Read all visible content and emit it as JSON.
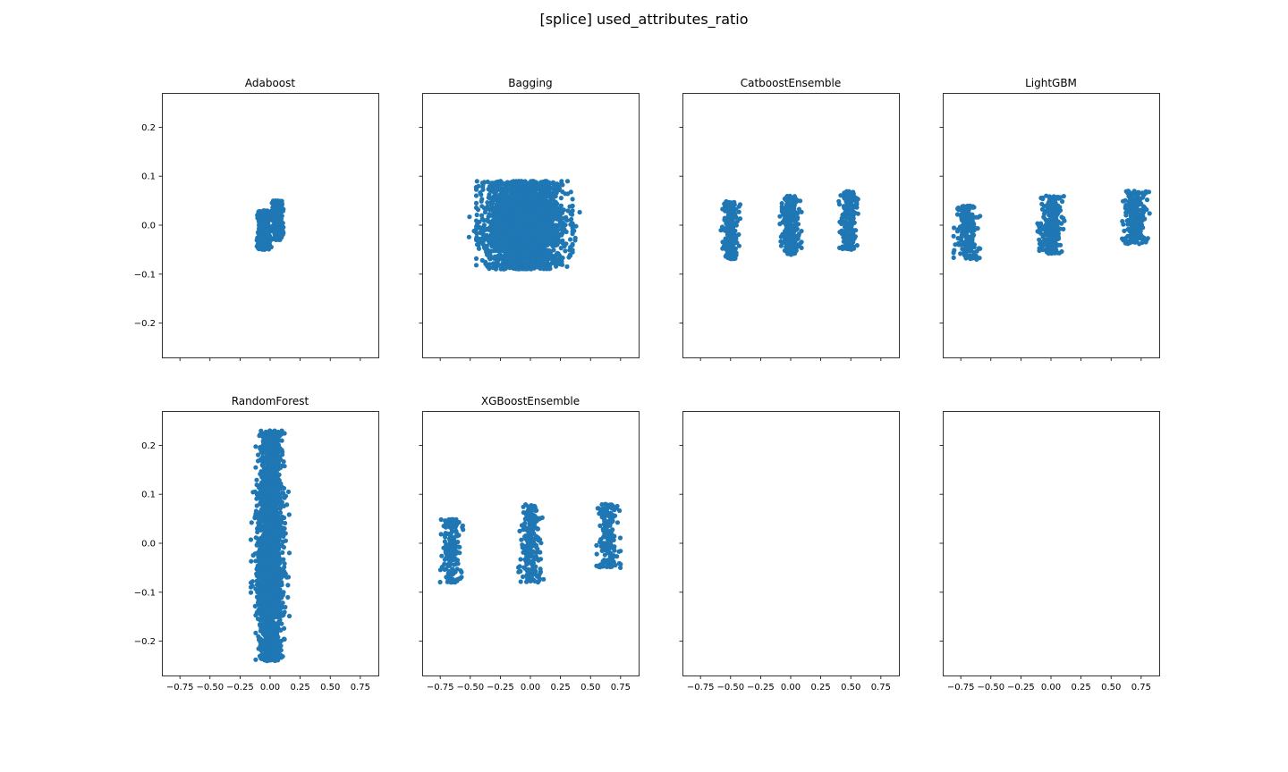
{
  "figure": {
    "title": "[splice] used_attributes_ratio",
    "point_color": "#1f77b4"
  },
  "chart_data": [
    {
      "type": "scatter",
      "title": "Adaboost",
      "xlim": [
        -0.9,
        0.9
      ],
      "ylim": [
        -0.27,
        0.27
      ],
      "x_ticks": [
        "−0.75",
        "−0.50",
        "−0.25",
        "0.00",
        "0.25",
        "0.50",
        "0.75"
      ],
      "x_tick_values": [
        -0.75,
        -0.5,
        -0.25,
        0,
        0.25,
        0.5,
        0.75
      ],
      "y_ticks": [
        "−0.2",
        "−0.1",
        "0.0",
        "0.1",
        "0.2"
      ],
      "y_tick_values": [
        -0.2,
        -0.1,
        0,
        0.1,
        0.2
      ],
      "show_x_tick_labels": false,
      "show_y_tick_labels": true,
      "clusters": [
        {
          "x_center": -0.05,
          "x_spread": 0.06,
          "y_min": -0.05,
          "y_max": 0.03,
          "count": 450
        },
        {
          "x_center": 0.06,
          "x_spread": 0.05,
          "y_min": -0.03,
          "y_max": 0.05,
          "count": 450
        }
      ]
    },
    {
      "type": "scatter",
      "title": "Bagging",
      "xlim": [
        -0.9,
        0.9
      ],
      "ylim": [
        -0.27,
        0.27
      ],
      "x_ticks": [
        "−0.75",
        "−0.50",
        "−0.25",
        "0.00",
        "0.25",
        "0.50",
        "0.75"
      ],
      "x_tick_values": [
        -0.75,
        -0.5,
        -0.25,
        0,
        0.25,
        0.5,
        0.75
      ],
      "y_ticks": [
        "−0.2",
        "−0.1",
        "0.0",
        "0.1",
        "0.2"
      ],
      "y_tick_values": [
        -0.2,
        -0.1,
        0,
        0.1,
        0.2
      ],
      "show_x_tick_labels": false,
      "show_y_tick_labels": false,
      "clusters": [
        {
          "x_center": -0.05,
          "x_spread": 0.4,
          "y_min": -0.09,
          "y_max": 0.09,
          "count": 2200
        },
        {
          "x_center": -0.05,
          "x_spread": 0.46,
          "y_min": -0.04,
          "y_max": 0.04,
          "count": 500
        }
      ]
    },
    {
      "type": "scatter",
      "title": "CatboostEnsemble",
      "xlim": [
        -0.9,
        0.9
      ],
      "ylim": [
        -0.27,
        0.27
      ],
      "x_ticks": [
        "−0.75",
        "−0.50",
        "−0.25",
        "0.00",
        "0.25",
        "0.50",
        "0.75"
      ],
      "x_tick_values": [
        -0.75,
        -0.5,
        -0.25,
        0,
        0.25,
        0.5,
        0.75
      ],
      "y_ticks": [
        "−0.2",
        "−0.1",
        "0.0",
        "0.1",
        "0.2"
      ],
      "y_tick_values": [
        -0.2,
        -0.1,
        0,
        0.1,
        0.2
      ],
      "show_x_tick_labels": false,
      "show_y_tick_labels": false,
      "clusters": [
        {
          "x_center": -0.5,
          "x_spread": 0.08,
          "y_min": -0.07,
          "y_max": 0.05,
          "count": 220
        },
        {
          "x_center": 0.0,
          "x_spread": 0.09,
          "y_min": -0.06,
          "y_max": 0.06,
          "count": 260
        },
        {
          "x_center": 0.48,
          "x_spread": 0.08,
          "y_min": -0.05,
          "y_max": 0.07,
          "count": 220
        }
      ]
    },
    {
      "type": "scatter",
      "title": "LightGBM",
      "xlim": [
        -0.9,
        0.9
      ],
      "ylim": [
        -0.27,
        0.27
      ],
      "x_ticks": [
        "−0.75",
        "−0.50",
        "−0.25",
        "0.00",
        "0.25",
        "0.50",
        "0.75"
      ],
      "x_tick_values": [
        -0.75,
        -0.5,
        -0.25,
        0,
        0.25,
        0.5,
        0.75
      ],
      "y_ticks": [
        "−0.2",
        "−0.1",
        "0.0",
        "0.1",
        "0.2"
      ],
      "y_tick_values": [
        -0.2,
        -0.1,
        0,
        0.1,
        0.2
      ],
      "show_x_tick_labels": false,
      "show_y_tick_labels": false,
      "clusters": [
        {
          "x_center": -0.7,
          "x_spread": 0.11,
          "y_min": -0.07,
          "y_max": 0.04,
          "count": 200
        },
        {
          "x_center": 0.0,
          "x_spread": 0.12,
          "y_min": -0.06,
          "y_max": 0.06,
          "count": 260
        },
        {
          "x_center": 0.7,
          "x_spread": 0.12,
          "y_min": -0.04,
          "y_max": 0.07,
          "count": 220
        }
      ]
    },
    {
      "type": "scatter",
      "title": "RandomForest",
      "xlim": [
        -0.9,
        0.9
      ],
      "ylim": [
        -0.27,
        0.27
      ],
      "x_ticks": [
        "−0.75",
        "−0.50",
        "−0.25",
        "0.00",
        "0.25",
        "0.50",
        "0.75"
      ],
      "x_tick_values": [
        -0.75,
        -0.5,
        -0.25,
        0,
        0.25,
        0.5,
        0.75
      ],
      "y_ticks": [
        "−0.2",
        "−0.1",
        "0.0",
        "0.1",
        "0.2"
      ],
      "y_tick_values": [
        -0.2,
        -0.1,
        0,
        0.1,
        0.2
      ],
      "show_x_tick_labels": true,
      "show_y_tick_labels": true,
      "clusters": [
        {
          "x_center": 0.0,
          "x_spread": 0.12,
          "y_min": -0.24,
          "y_max": 0.23,
          "count": 1800
        },
        {
          "x_center": 0.0,
          "x_spread": 0.16,
          "y_min": -0.15,
          "y_max": 0.12,
          "count": 600
        }
      ]
    },
    {
      "type": "scatter",
      "title": "XGBoostEnsemble",
      "xlim": [
        -0.9,
        0.9
      ],
      "ylim": [
        -0.27,
        0.27
      ],
      "x_ticks": [
        "−0.75",
        "−0.50",
        "−0.25",
        "0.00",
        "0.25",
        "0.50",
        "0.75"
      ],
      "x_tick_values": [
        -0.75,
        -0.5,
        -0.25,
        0,
        0.25,
        0.5,
        0.75
      ],
      "y_ticks": [
        "−0.2",
        "−0.1",
        "0.0",
        "0.1",
        "0.2"
      ],
      "y_tick_values": [
        -0.2,
        -0.1,
        0,
        0.1,
        0.2
      ],
      "show_x_tick_labels": true,
      "show_y_tick_labels": false,
      "clusters": [
        {
          "x_center": -0.66,
          "x_spread": 0.1,
          "y_min": -0.08,
          "y_max": 0.05,
          "count": 200
        },
        {
          "x_center": 0.0,
          "x_spread": 0.11,
          "y_min": -0.08,
          "y_max": 0.08,
          "count": 220
        },
        {
          "x_center": 0.65,
          "x_spread": 0.1,
          "y_min": -0.05,
          "y_max": 0.08,
          "count": 200
        }
      ]
    },
    {
      "type": "scatter",
      "title": "",
      "xlim": [
        -0.9,
        0.9
      ],
      "ylim": [
        -0.27,
        0.27
      ],
      "x_ticks": [
        "−0.75",
        "−0.50",
        "−0.25",
        "0.00",
        "0.25",
        "0.50",
        "0.75"
      ],
      "x_tick_values": [
        -0.75,
        -0.5,
        -0.25,
        0,
        0.25,
        0.5,
        0.75
      ],
      "y_ticks": [
        "−0.2",
        "−0.1",
        "0.0",
        "0.1",
        "0.2"
      ],
      "y_tick_values": [
        -0.2,
        -0.1,
        0,
        0.1,
        0.2
      ],
      "show_x_tick_labels": true,
      "show_y_tick_labels": false,
      "clusters": []
    },
    {
      "type": "scatter",
      "title": "",
      "xlim": [
        -0.9,
        0.9
      ],
      "ylim": [
        -0.27,
        0.27
      ],
      "x_ticks": [
        "−0.75",
        "−0.50",
        "−0.25",
        "0.00",
        "0.25",
        "0.50",
        "0.75"
      ],
      "x_tick_values": [
        -0.75,
        -0.5,
        -0.25,
        0,
        0.25,
        0.5,
        0.75
      ],
      "y_ticks": [
        "−0.2",
        "−0.1",
        "0.0",
        "0.1",
        "0.2"
      ],
      "y_tick_values": [
        -0.2,
        -0.1,
        0,
        0.1,
        0.2
      ],
      "show_x_tick_labels": true,
      "show_y_tick_labels": false,
      "clusters": []
    }
  ]
}
